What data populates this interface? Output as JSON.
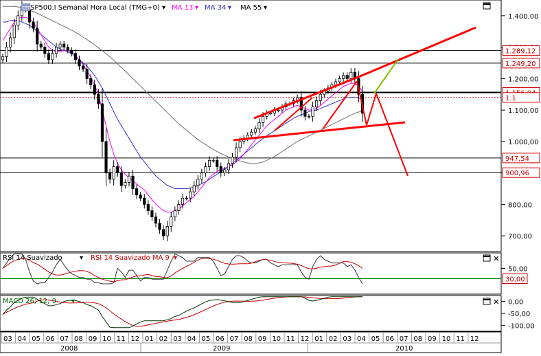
{
  "logo_text": "CFD",
  "legend": {
    "symbol": "SP500.I Semanal Hora Local (TMG+0)",
    "ma13": "MA 13",
    "ma34": "MA 34",
    "ma55": "MA 55",
    "rsi": "RSI 14 Suavizado",
    "rsi_ma": "RSI 14 Suavizado MA 9",
    "macd": "MACD 26; 12; 9"
  },
  "colors": {
    "candle": "#000000",
    "ma13": "#ff00ff",
    "ma34": "#3333cc",
    "ma55": "#707070",
    "trend_red": "#ff0000",
    "trend_green": "#80c000",
    "level_dotted": "#cc0000",
    "rsi_line": "#333333",
    "rsi_ma_line": "#cc0000",
    "rsi_30_line": "#008000",
    "macd_line": "#003300",
    "macd_signal": "#cc0000"
  },
  "chart_data": [
    {
      "type": "candlestick",
      "name": "price",
      "ylim": [
        650,
        1450
      ],
      "y_ticks": [
        {
          "value": 1400,
          "label": "1.400,00"
        },
        {
          "value": 1300,
          "label": "1.300,00"
        },
        {
          "value": 1200,
          "label": "1.200,00"
        },
        {
          "value": 1100,
          "label": "1.100,00"
        },
        {
          "value": 1000,
          "label": "1.000,00"
        },
        {
          "value": 900,
          "label": "900,00"
        },
        {
          "value": 800,
          "label": "800,00"
        },
        {
          "value": 700,
          "label": "700,00"
        }
      ],
      "horizontal_levels": [
        {
          "value": 1289.12,
          "label": "1.289,12",
          "style": "solid"
        },
        {
          "value": 1249.2,
          "label": "1.249,20",
          "style": "solid"
        },
        {
          "value": 1156.04,
          "label": "1.156,04",
          "style": "solid"
        },
        {
          "value": 1140,
          "label": "1.1",
          "style": "dotted"
        },
        {
          "value": 947.54,
          "label": "947,54",
          "style": "solid"
        },
        {
          "value": 900.96,
          "label": "900,96",
          "style": "solid"
        }
      ],
      "approx_close_series": [
        1270,
        1300,
        1330,
        1370,
        1400,
        1430,
        1420,
        1380,
        1360,
        1310,
        1300,
        1280,
        1260,
        1280,
        1300,
        1310,
        1300,
        1290,
        1280,
        1260,
        1240,
        1230,
        1200,
        1180,
        1150,
        1120,
        1000,
        900,
        880,
        920,
        900,
        860,
        870,
        890,
        850,
        830,
        820,
        800,
        780,
        760,
        740,
        720,
        700,
        730,
        760,
        780,
        800,
        820,
        820,
        840,
        860,
        880,
        900,
        920,
        940,
        940,
        920,
        900,
        910,
        930,
        950,
        980,
        1000,
        1010,
        1020,
        1030,
        1040,
        1060,
        1080,
        1090,
        1090,
        1100,
        1100,
        1110,
        1120,
        1120,
        1130,
        1140,
        1100,
        1080,
        1080,
        1110,
        1130,
        1150,
        1160,
        1170,
        1180,
        1190,
        1200,
        1210,
        1200,
        1220,
        1200,
        1150,
        1090
      ],
      "approx_ma13": [
        1320,
        1340,
        1360,
        1380,
        1390,
        1395,
        1395,
        1390,
        1380,
        1360,
        1340,
        1320,
        1300,
        1290,
        1285,
        1285,
        1290,
        1290,
        1285,
        1275,
        1260,
        1245,
        1225,
        1205,
        1180,
        1150,
        1100,
        1050,
        1000,
        960,
        930,
        910,
        895,
        885,
        875,
        865,
        855,
        845,
        830,
        815,
        800,
        790,
        780,
        775,
        775,
        780,
        785,
        795,
        805,
        815,
        825,
        840,
        855,
        870,
        885,
        895,
        905,
        910,
        915,
        920,
        925,
        935,
        945,
        960,
        975,
        990,
        1005,
        1020,
        1035,
        1050,
        1060,
        1070,
        1080,
        1090,
        1100,
        1105,
        1110,
        1115,
        1110,
        1105,
        1100,
        1100,
        1105,
        1115,
        1125,
        1135,
        1145,
        1155,
        1165,
        1175,
        1180,
        1185,
        1185,
        1175,
        1160
      ],
      "approx_ma34": [
        1380,
        1380,
        1385,
        1385,
        1385,
        1380,
        1375,
        1370,
        1360,
        1350,
        1340,
        1330,
        1320,
        1310,
        1300,
        1295,
        1290,
        1285,
        1280,
        1270,
        1260,
        1250,
        1240,
        1225,
        1210,
        1190,
        1170,
        1145,
        1120,
        1095,
        1070,
        1050,
        1030,
        1010,
        990,
        970,
        950,
        935,
        920,
        905,
        890,
        880,
        870,
        860,
        855,
        850,
        850,
        850,
        850,
        852,
        855,
        860,
        866,
        872,
        880,
        888,
        896,
        904,
        912,
        920,
        930,
        940,
        950,
        960,
        970,
        980,
        990,
        1000,
        1010,
        1018,
        1026,
        1034,
        1042,
        1050,
        1058,
        1066,
        1074,
        1080,
        1085,
        1090,
        1095,
        1098,
        1100,
        1105,
        1110,
        1115,
        1120,
        1125,
        1130,
        1135,
        1140,
        1140,
        1140,
        1138,
        1135
      ],
      "approx_ma55": [
        1430,
        1430,
        1430,
        1430,
        1428,
        1425,
        1422,
        1418,
        1413,
        1408,
        1402,
        1396,
        1390,
        1384,
        1378,
        1372,
        1366,
        1360,
        1354,
        1347,
        1340,
        1332,
        1324,
        1316,
        1307,
        1298,
        1289,
        1279,
        1269,
        1258,
        1247,
        1236,
        1224,
        1212,
        1200,
        1188,
        1176,
        1164,
        1152,
        1140,
        1128,
        1116,
        1104,
        1092,
        1080,
        1068,
        1056,
        1046,
        1036,
        1026,
        1016,
        1006,
        998,
        990,
        982,
        975,
        968,
        962,
        956,
        951,
        946,
        942,
        938,
        935,
        932,
        930,
        930,
        932,
        935,
        940,
        946,
        952,
        960,
        968,
        976,
        984,
        992,
        1000,
        1006,
        1012,
        1018,
        1024,
        1030,
        1036,
        1042,
        1048,
        1054,
        1060,
        1066,
        1072,
        1078,
        1084,
        1090,
        1094,
        1096
      ]
    },
    {
      "type": "line",
      "name": "rsi",
      "y_ticks": [
        {
          "value": 50,
          "label": "50,00"
        }
      ],
      "horizontal_levels": [
        {
          "value": 30,
          "label": "30,00"
        }
      ]
    },
    {
      "type": "line",
      "name": "macd",
      "y_ticks": [
        {
          "value": 0,
          "label": "0,00"
        },
        {
          "value": -50,
          "label": "-50,00"
        },
        {
          "value": -100,
          "label": "-100,00"
        }
      ]
    }
  ],
  "x_axis": {
    "months": [
      "03",
      "04",
      "05",
      "06",
      "07",
      "08",
      "09",
      "10",
      "11",
      "12",
      "01",
      "02",
      "03",
      "04",
      "05",
      "06",
      "07",
      "08",
      "09",
      "10",
      "11",
      "12",
      "01",
      "02",
      "03",
      "04",
      "05",
      "06",
      "07",
      "08",
      "09",
      "10",
      "11",
      "12"
    ],
    "years": [
      "2008",
      "2009",
      "2010"
    ]
  }
}
